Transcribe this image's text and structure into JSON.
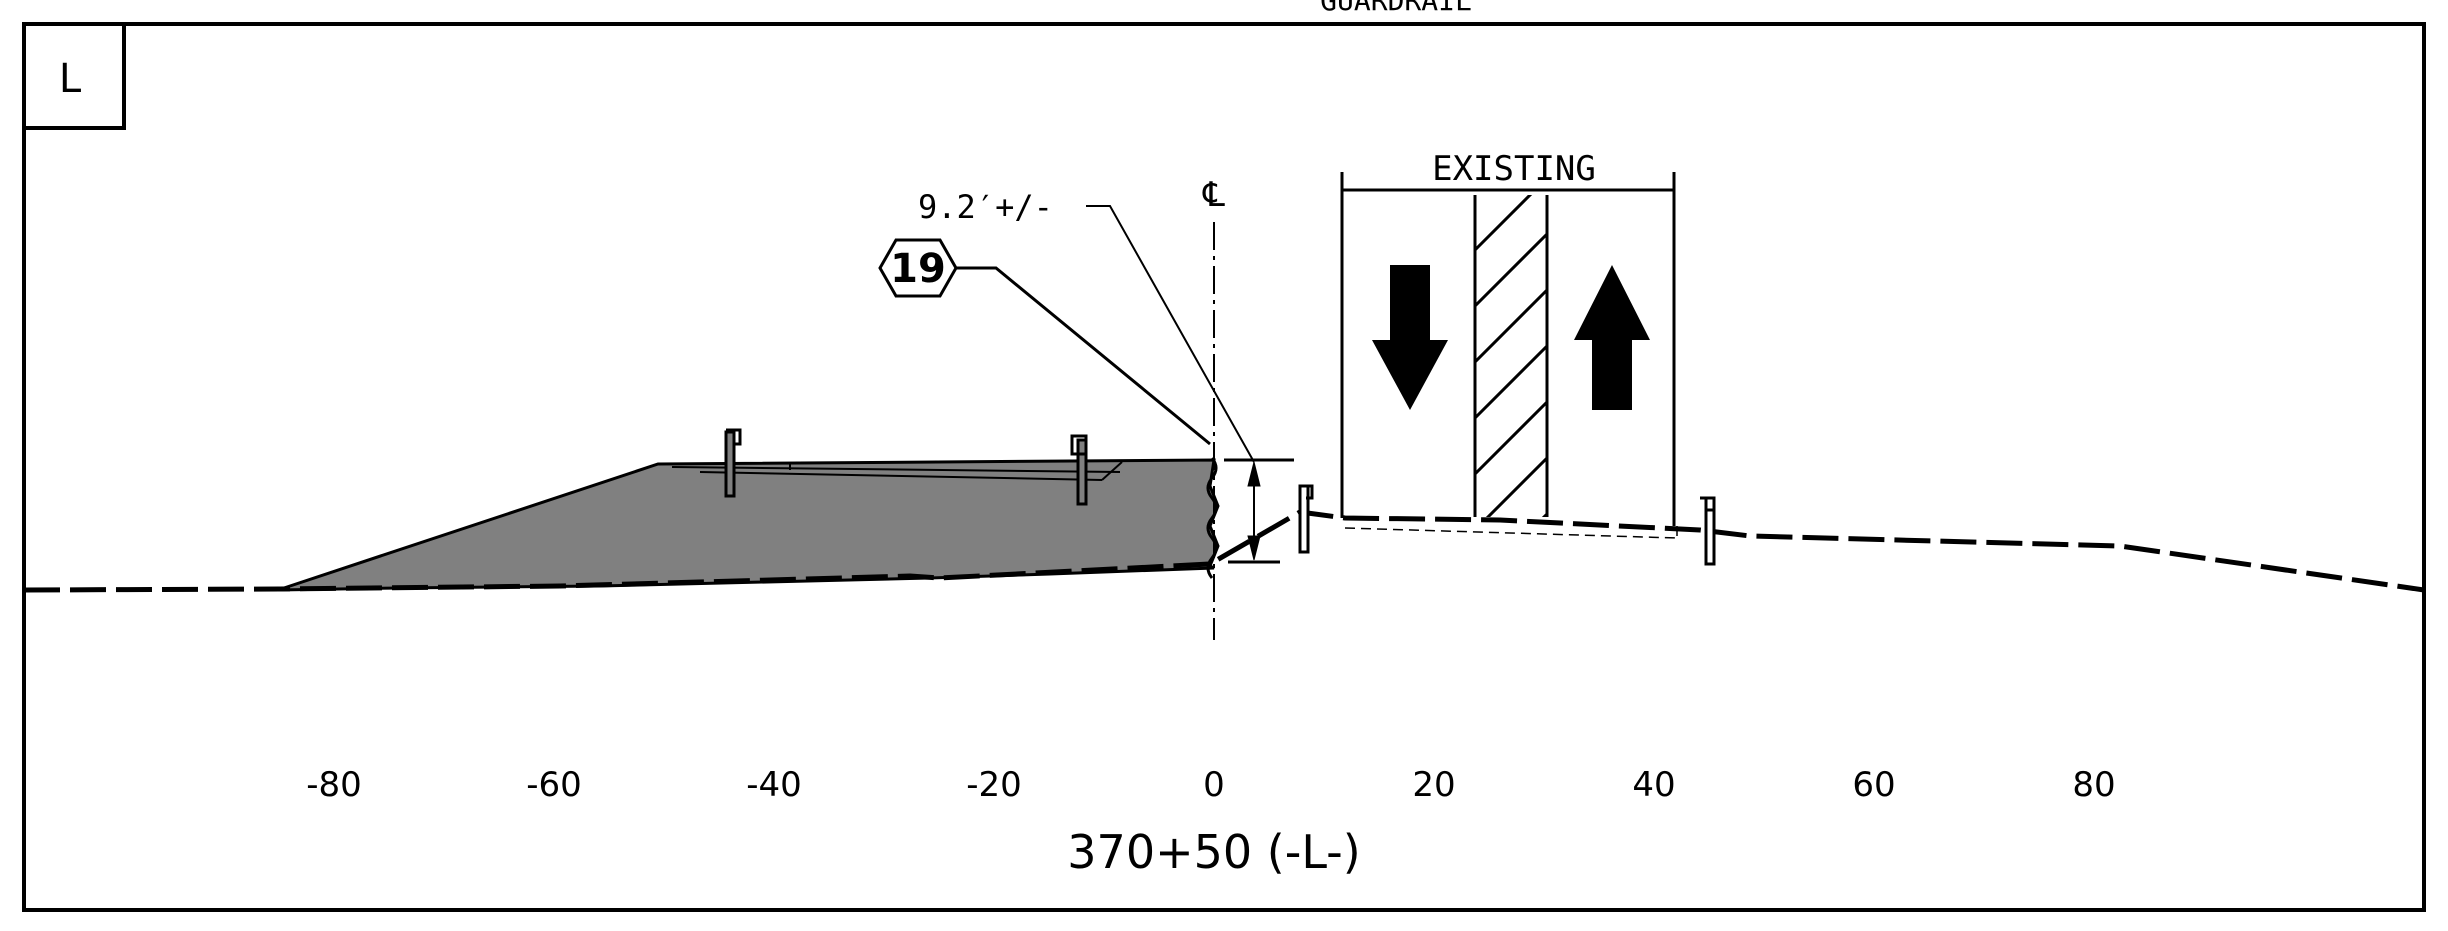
{
  "sheet": {
    "top_label": "GUARDRAIL",
    "panel_letter": "L"
  },
  "annotations": {
    "dimension": "9.2′+/-",
    "keynote": "19",
    "centerline_symbol": "℄",
    "existing_label": "EXISTING"
  },
  "axis": {
    "ticks": [
      "-80",
      "-60",
      "-40",
      "-20",
      "0",
      "20",
      "40",
      "60",
      "80"
    ],
    "station_label": "370+50 (-L-)"
  },
  "colors": {
    "line": "#000000",
    "fill_section": "#808080",
    "background": "#ffffff"
  },
  "icons": [
    "southbound-lane-arrow-icon",
    "northbound-lane-arrow-icon",
    "median-hatch",
    "guardrail-post-icon"
  ]
}
